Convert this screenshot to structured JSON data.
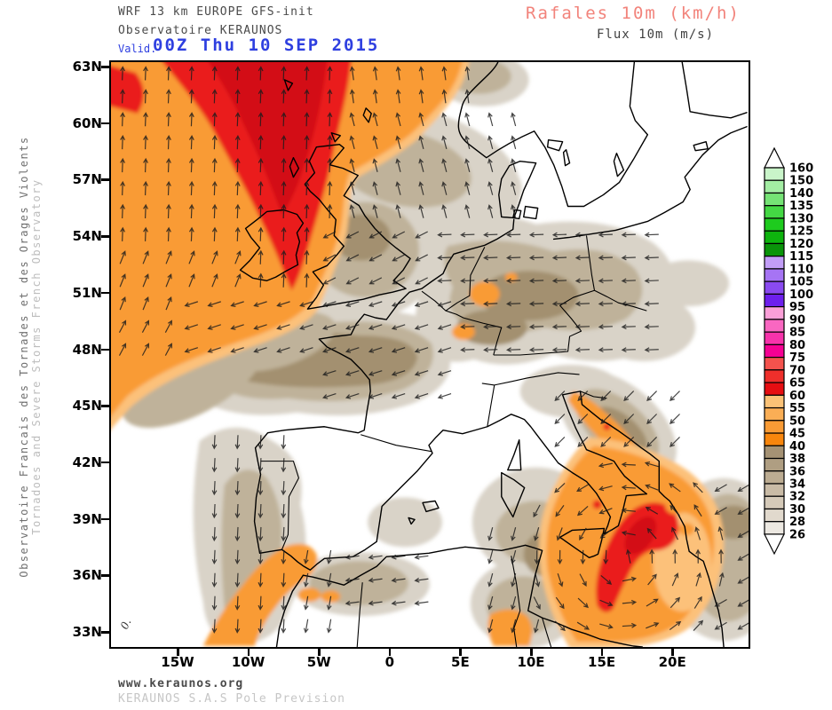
{
  "header": {
    "model_line": "WRF 13 km EUROPE  GFS-init",
    "org_line": "Observatoire KERAUNOS",
    "valid_label": "Valid.",
    "valid_datetime": "00Z Thu 10 SEP 2015",
    "param_main": "Rafales 10m (km/h)",
    "param_secondary": "Flux 10m (m/s)"
  },
  "sidebar_left": {
    "line1": "Observatoire Francais des Tornades et des Orages Violents",
    "line2": "Tornadoes and Severe Storms French Observatory"
  },
  "footer": {
    "site": "www.keraunos.org",
    "company": "KERAUNOS S.A.S Pole Prevision"
  },
  "map": {
    "lat_labels": [
      "63N",
      "60N",
      "57N",
      "54N",
      "51N",
      "48N",
      "45N",
      "42N",
      "39N",
      "36N",
      "33N"
    ],
    "lon_labels": [
      "15W",
      "10W",
      "5W",
      "0",
      "5E",
      "10E",
      "15E",
      "20E"
    ],
    "contour_label": "0."
  },
  "colorbar": {
    "levels": [
      160,
      150,
      140,
      135,
      130,
      125,
      120,
      115,
      110,
      105,
      100,
      95,
      90,
      85,
      80,
      75,
      70,
      65,
      60,
      55,
      50,
      45,
      40,
      38,
      36,
      34,
      32,
      30,
      28,
      26
    ],
    "box_colors": [
      "#c9f4c9",
      "#a3eda3",
      "#75e375",
      "#44d844",
      "#1ecb1e",
      "#0eb40e",
      "#0a940a",
      "#c29df7",
      "#a674f4",
      "#8a4af0",
      "#6d1fec",
      "#fb9fd8",
      "#f967c1",
      "#f733ab",
      "#f50193",
      "#f4524d",
      "#ef2f2b",
      "#e60e12",
      "#fbc277",
      "#faae55",
      "#f99b35",
      "#f8860d",
      "#a59274",
      "#af9e82",
      "#bcac92",
      "#c9bba6",
      "#d5cab9",
      "#e1d9cd",
      "#ece8e1"
    ],
    "above_color": "#ffffff",
    "below_color": "#ffffff"
  },
  "palette": {
    "grayLight": "#d9d3c8",
    "tan": "#bfb29a",
    "tanDark": "#a3906f",
    "orangeLight": "#fcc17a",
    "orange": "#f99b35",
    "red": "#ea1c1f",
    "redDark": "#d31014",
    "coastline": "#000000",
    "arrow": "#1c1c1c",
    "title_gray": "#4a4a4a",
    "valid_blue": "#2e3fe0",
    "rafales_salmon": "#f2837b"
  }
}
